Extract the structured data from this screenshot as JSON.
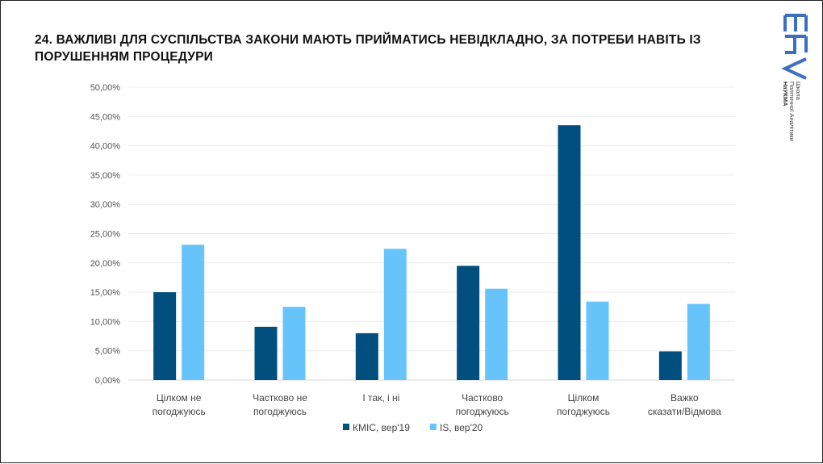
{
  "title": "24. ВАЖЛИВІ ДЛЯ СУСПІЛЬСТВА ЗАКОНИ МАЮТЬ ПРИЙМАТИСЬ НЕВІДКЛАДНО, ЗА ПОТРЕБИ НАВІТЬ ІЗ ПОРУШЕННЯМ ПРОЦЕДУРИ",
  "logo": {
    "mark": "ШПА",
    "lines": [
      "Школа",
      "Політичної Аналітики",
      "НаУКМА"
    ],
    "color": "#3b6fc4"
  },
  "chart_data": {
    "type": "bar",
    "title": "",
    "categories": [
      [
        "Цілком не",
        "погоджуюсь"
      ],
      [
        "Частково не",
        "погоджуюсь"
      ],
      [
        "І так, і ні"
      ],
      [
        "Частково",
        "погоджуюсь"
      ],
      [
        "Цілком",
        "погоджуюсь"
      ],
      [
        "Важко",
        "сказати/Відмова"
      ]
    ],
    "series": [
      {
        "name": "КМІС, вер'19",
        "color": "#004f7f",
        "values": [
          15.0,
          9.1,
          8.0,
          19.5,
          43.5,
          4.9
        ]
      },
      {
        "name": "IS, вер'20",
        "color": "#66c4fb",
        "values": [
          23.1,
          12.5,
          22.4,
          15.6,
          13.4,
          13.0
        ]
      }
    ],
    "ylim": [
      0,
      50
    ],
    "yticks": [
      "0,00%",
      "5,00%",
      "10,00%",
      "15,00%",
      "20,00%",
      "25,00%",
      "30,00%",
      "35,00%",
      "40,00%",
      "45,00%",
      "50,00%"
    ],
    "grid": true,
    "legend": "bottom"
  }
}
